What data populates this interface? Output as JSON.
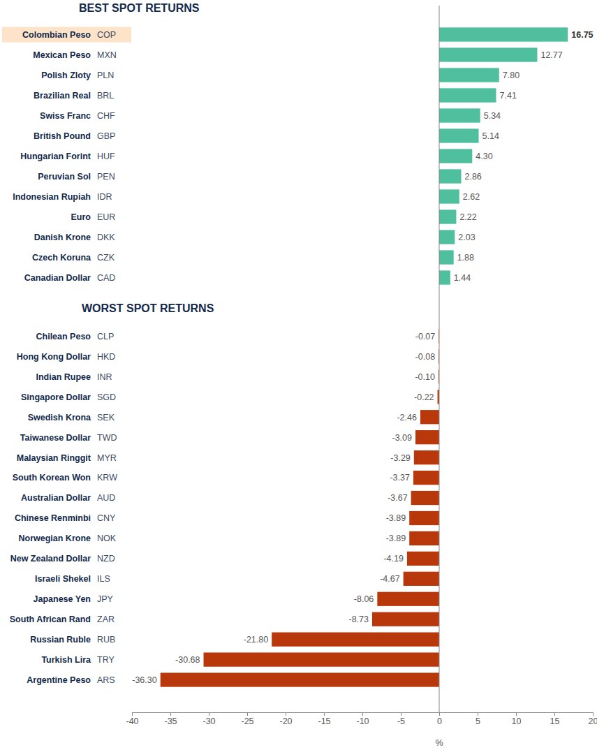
{
  "chart_data": {
    "type": "bar",
    "orientation": "horizontal",
    "data_labels": true,
    "xlim": [
      -40,
      20
    ],
    "xticks": [
      -40,
      -35,
      -30,
      -25,
      -20,
      -15,
      -10,
      -5,
      0,
      5,
      10,
      15,
      20
    ],
    "x_label": "%",
    "groups": [
      {
        "title": "BEST SPOT RETURNS",
        "color": "#4fbf9e",
        "categories": [
          "Colombian Peso",
          "Mexican Peso",
          "Polish Zloty",
          "Brazilian Real",
          "Swiss Franc",
          "British Pound",
          "Hungarian Forint",
          "Peruvian Sol",
          "Indonesian Rupiah",
          "Euro",
          "Danish Krone",
          "Czech Koruna",
          "Canadian Dollar"
        ],
        "codes": [
          "COP",
          "MXN",
          "PLN",
          "BRL",
          "CHF",
          "GBP",
          "HUF",
          "PEN",
          "IDR",
          "EUR",
          "DKK",
          "CZK",
          "CAD"
        ],
        "values": [
          16.75,
          12.77,
          7.8,
          7.41,
          5.34,
          5.14,
          4.3,
          2.86,
          2.62,
          2.22,
          2.03,
          1.88,
          1.44
        ],
        "value_labels": [
          "16.75",
          "12.77",
          "7.80",
          "7.41",
          "5.34",
          "5.14",
          "4.30",
          "2.86",
          "2.62",
          "2.22",
          "2.03",
          "1.88",
          "1.44"
        ]
      },
      {
        "title": "WORST SPOT RETURNS",
        "color": "#b8380b",
        "categories": [
          "Chilean Peso",
          "Hong Kong Dollar",
          "Indian Rupee",
          "Singapore Dollar",
          "Swedish Krona",
          "Taiwanese Dollar",
          "Malaysian Ringgit",
          "South Korean Won",
          "Australian Dollar",
          "Chinese Renminbi",
          "Norwegian Krone",
          "New Zealand Dollar",
          "Israeli Shekel",
          "Japanese Yen",
          "South African Rand",
          "Russian Ruble",
          "Turkish Lira",
          "Argentine Peso"
        ],
        "codes": [
          "CLP",
          "HKD",
          "INR",
          "SGD",
          "SEK",
          "TWD",
          "MYR",
          "KRW",
          "AUD",
          "CNY",
          "NOK",
          "NZD",
          "ILS",
          "JPY",
          "ZAR",
          "RUB",
          "TRY",
          "ARS"
        ],
        "values": [
          -0.07,
          -0.08,
          -0.1,
          -0.22,
          -2.46,
          -3.09,
          -3.29,
          -3.37,
          -3.67,
          -3.89,
          -3.89,
          -4.19,
          -4.67,
          -8.06,
          -8.73,
          -21.8,
          -30.68,
          -36.3
        ],
        "value_labels": [
          "-0.07",
          "-0.08",
          "-0.10",
          "-0.22",
          "-2.46",
          "-3.09",
          "-3.29",
          "-3.37",
          "-3.67",
          "-3.89",
          "-3.89",
          "-4.19",
          "-4.67",
          "-8.06",
          "-8.73",
          "-21.80",
          "-30.68",
          "-36.30"
        ]
      }
    ]
  }
}
